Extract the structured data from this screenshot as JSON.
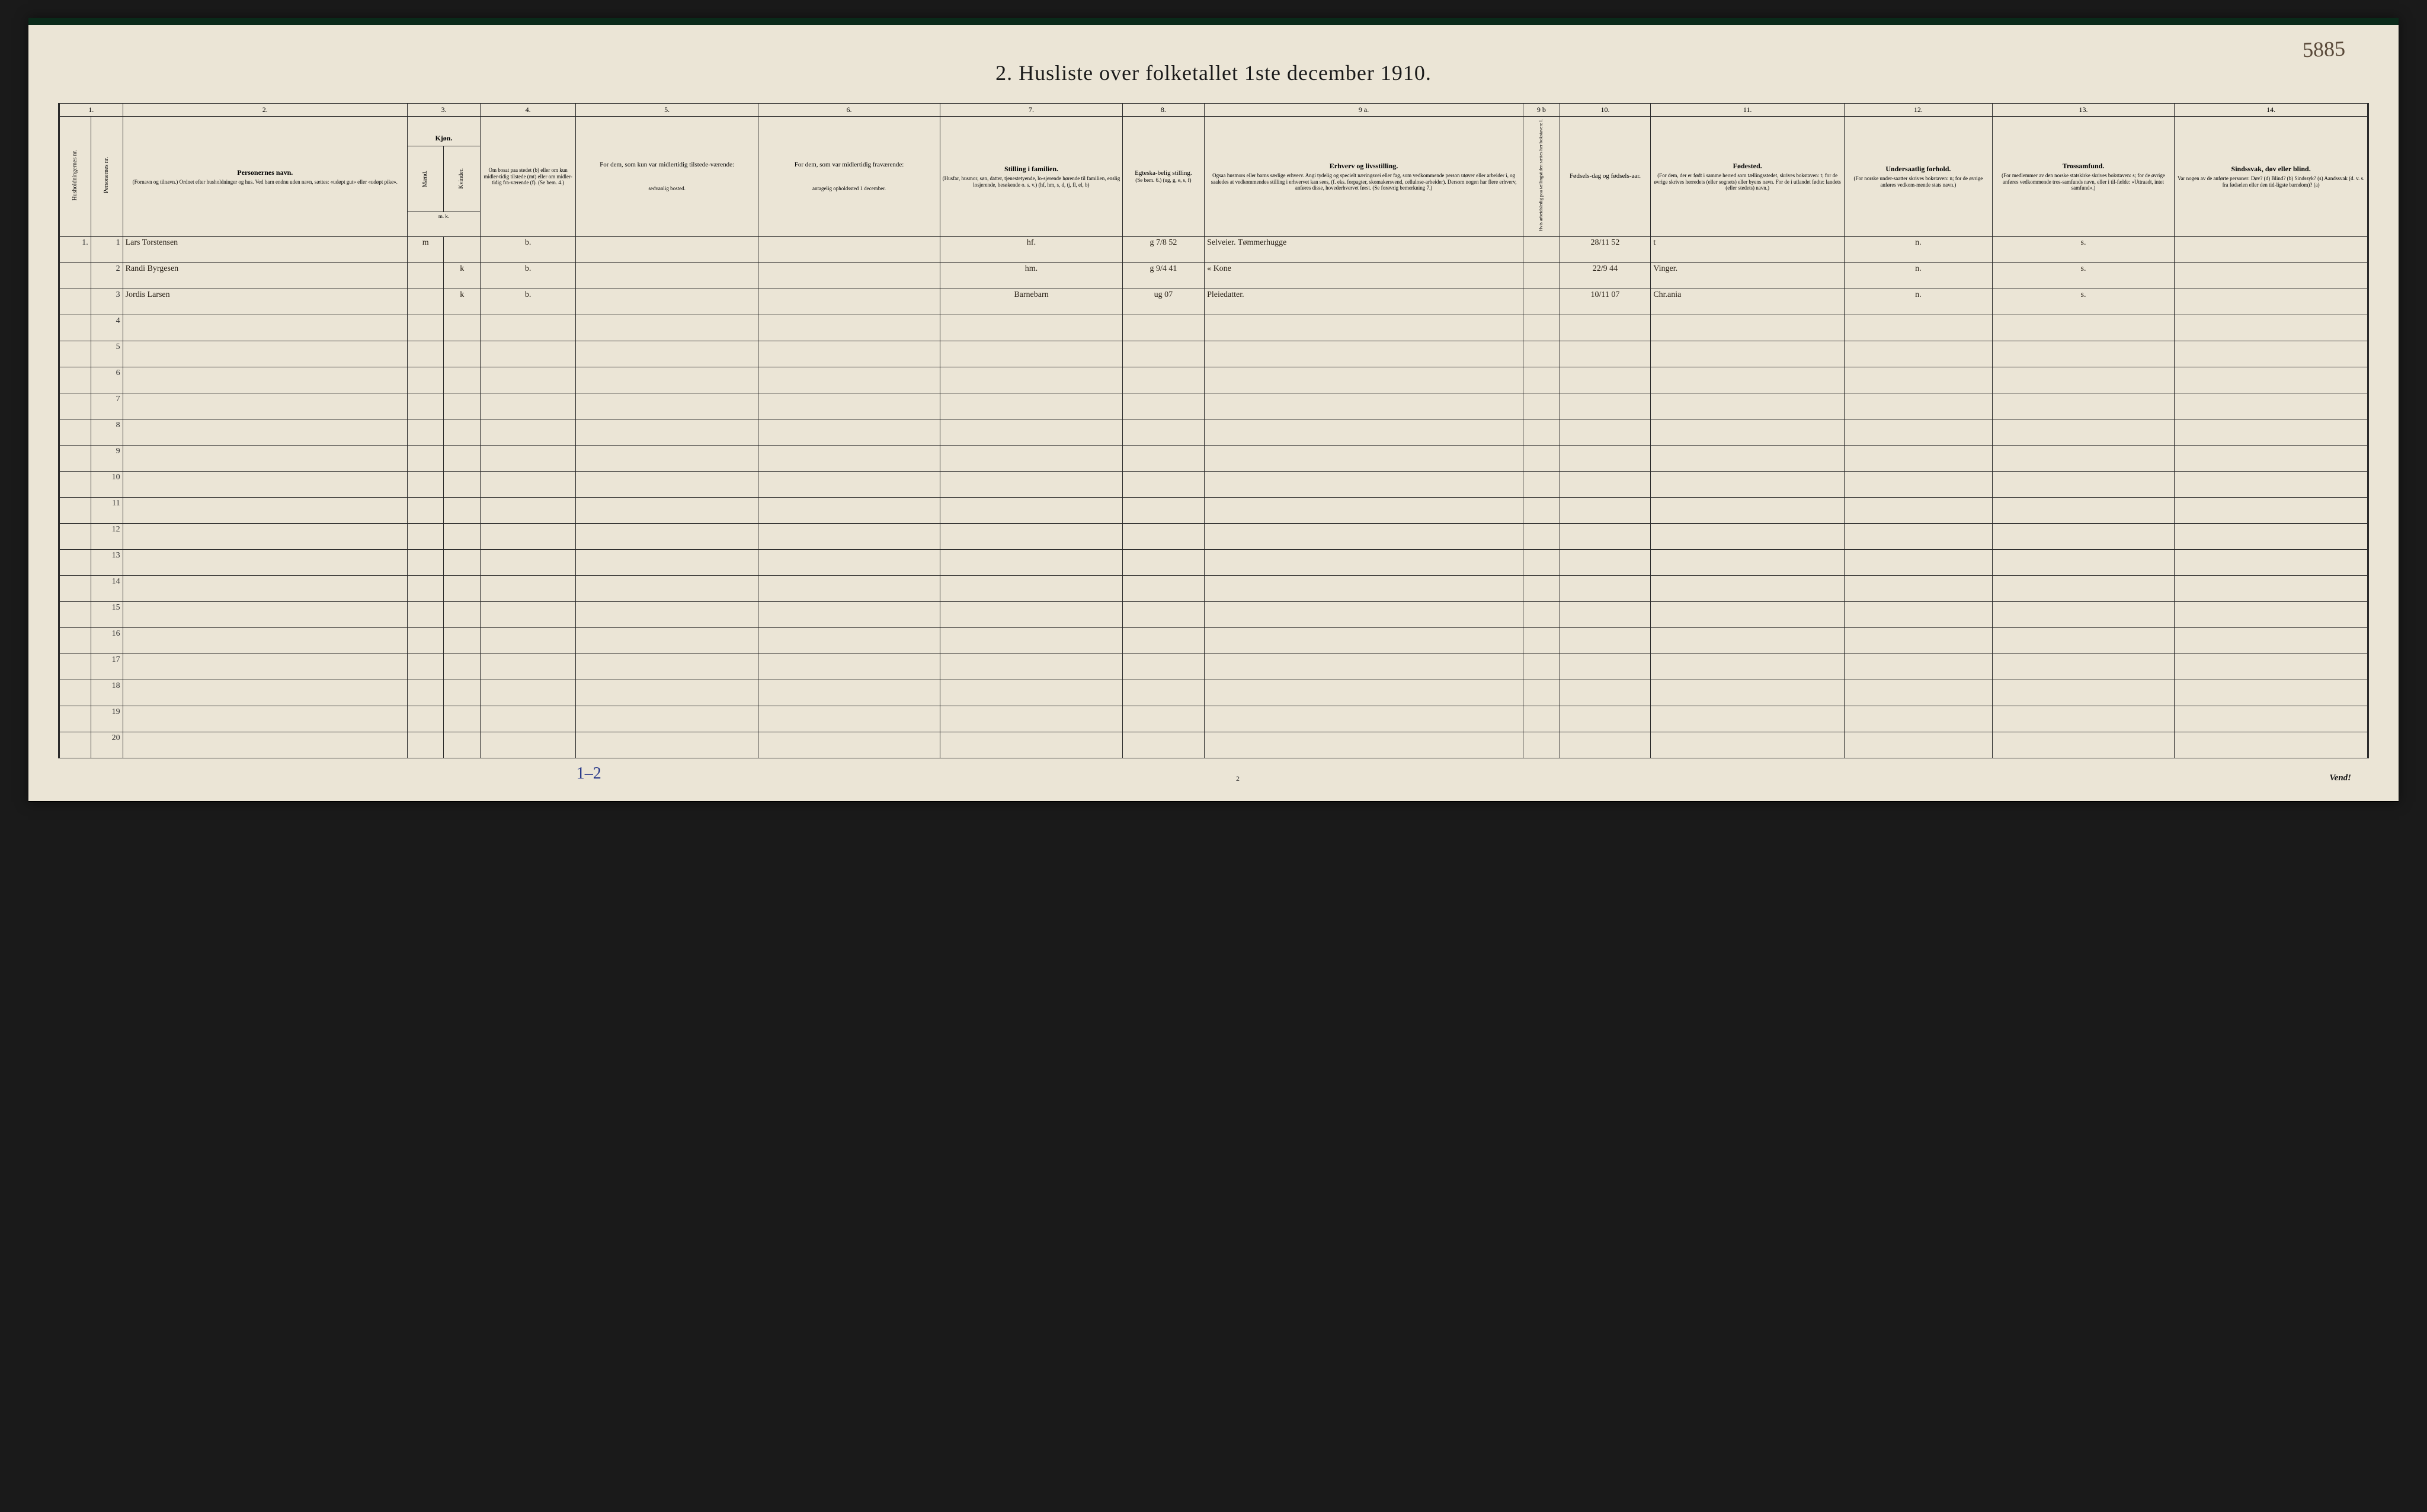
{
  "annotations": {
    "top_right": "5885",
    "bottom_left": "1–2",
    "page_number": "2",
    "vend": "Vend!"
  },
  "title": "2.  Husliste over folketallet 1ste december 1910.",
  "column_numbers": [
    "1.",
    "2.",
    "3.",
    "4.",
    "5.",
    "6.",
    "7.",
    "8.",
    "9 a.",
    "9 b",
    "10.",
    "11.",
    "12.",
    "13.",
    "14."
  ],
  "headers": {
    "col1": "Husholdningernes nr.",
    "col1b": "Personernes nr.",
    "col2_title": "Personernes navn.",
    "col2_sub": "(Fornavn og tilnavn.) Ordnet efter husholdninger og hus. Ved barn endnu uden navn, sættes: «udøpt gut» eller «udøpt pike».",
    "col3_title": "Kjøn.",
    "col3_m": "Mænd.",
    "col3_k": "Kvinder.",
    "col3_foot": "m. k.",
    "col4": "Om bosat paa stedet (b) eller om kun midler-tidig tilstede (mt) eller om midler-tidig fra-værende (f). (Se bem. 4.)",
    "col5_title": "For dem, som kun var midlertidig tilstede-værende:",
    "col5_sub": "sedvanlig bosted.",
    "col6_title": "For dem, som var midlertidig fraværende:",
    "col6_sub": "antagelig opholdssted 1 december.",
    "col7_title": "Stilling i familien.",
    "col7_sub": "(Husfar, husmor, søn, datter, tjenestetyende, lo-sjerende hørende til familien, enslig losjerende, besøkende o. s. v.) (hf, hm, s, d, tj, fl, el, b)",
    "col8_title": "Egteska-belig stilling.",
    "col8_sub": "(Se bem. 6.) (ug, g, e, s, f)",
    "col9a_title": "Erhverv og livsstilling.",
    "col9a_sub": "Ogsaa husmors eller barns særlige erhverv. Angi tydelig og specielt næringsvei eller fag, som vedkommende person utøver eller arbeider i, og saaledes at vedkommendes stilling i erhvervet kan sees, (f. eks. forpagter, skomakersvend, cellulose-arbeider). Dersom nogen har flere erhverv, anføres disse, hovederhvervet først. (Se forøvrig bemerkning 7.)",
    "col9b": "Hvis arbeidsledig paa tællingstiden sættes her bokstaven: l.",
    "col10_title": "Fødsels-dag og fødsels-aar.",
    "col11_title": "Fødested.",
    "col11_sub": "(For dem, der er født i samme herred som tællingsstedet, skrives bokstaven: t; for de øvrige skrives herredets (eller sognets) eller byens navn. For de i utlandet fødte: landets (eller stedets) navn.)",
    "col12_title": "Undersaatlig forhold.",
    "col12_sub": "(For norske under-saatter skrives bokstaven: n; for de øvrige anføres vedkom-mende stats navn.)",
    "col13_title": "Trossamfund.",
    "col13_sub": "(For medlemmer av den norske statskirke skrives bokstaven: s; for de øvrige anføres vedkommende tros-samfunds navn, eller i til-fælde: «Uttraadt, intet samfund».)",
    "col14_title": "Sindssvak, døv eller blind.",
    "col14_sub": "Var nogen av de anførte personer: Døv? (d) Blind? (b) Sindssyk? (s) Aandssvak (d. v. s. fra fødselen eller den tid-ligste barndom)? (a)"
  },
  "rows": [
    {
      "hh": "1.",
      "pn": "1",
      "name": "Lars Torstensen",
      "sex": "m",
      "bosat": "b.",
      "c5": "",
      "c6": "",
      "stilling": "hf.",
      "egte": "g 7/8 52",
      "erhverv": "Selveier. Tømmerhugge",
      "c9b": "",
      "fdato": "28/11 52",
      "fsted": "t",
      "under": "n.",
      "tros": "s.",
      "c14": ""
    },
    {
      "hh": "",
      "pn": "2",
      "name": "Randi Byrgesen",
      "sex": "k",
      "bosat": "b.",
      "c5": "",
      "c6": "",
      "stilling": "hm.",
      "egte": "g 9/4 41",
      "erhverv": "«  Kone",
      "c9b": "",
      "fdato": "22/9 44",
      "fsted": "Vinger.",
      "under": "n.",
      "tros": "s.",
      "c14": ""
    },
    {
      "hh": "",
      "pn": "3",
      "name": "Jordis Larsen",
      "sex": "k",
      "bosat": "b.",
      "c5": "",
      "c6": "",
      "stilling": "Barnebarn",
      "egte": "ug 07",
      "erhverv": "Pleiedatter.",
      "c9b": "",
      "fdato": "10/11 07",
      "fsted": "Chr.ania",
      "under": "n.",
      "tros": "s.",
      "c14": ""
    }
  ],
  "row_numbers": [
    "1",
    "2",
    "3",
    "4",
    "5",
    "6",
    "7",
    "8",
    "9",
    "10",
    "11",
    "12",
    "13",
    "14",
    "15",
    "16",
    "17",
    "18",
    "19",
    "20"
  ],
  "style": {
    "page_bg": "#ebe5d6",
    "outer_bg": "#1a1a1a",
    "border_color": "#2a2a2a",
    "top_strip": "#0a2a1a",
    "title_fontsize": 36,
    "header_fontsize": 11,
    "hand_color": "#2a2218",
    "blue_ink": "#2a3a8a",
    "sepia_ink": "#5a4a3a",
    "col_widths_pct": {
      "c1a": 1.4,
      "c1b": 1.4,
      "c2": 12.5,
      "c3m": 1.6,
      "c3k": 1.6,
      "c4": 4.2,
      "c5": 8.0,
      "c6": 8.0,
      "c7": 8.0,
      "c8": 3.6,
      "c9a": 14.0,
      "c9b": 1.6,
      "c10": 4.0,
      "c11": 8.5,
      "c12": 6.5,
      "c13": 8.0,
      "c14": 8.5
    }
  }
}
